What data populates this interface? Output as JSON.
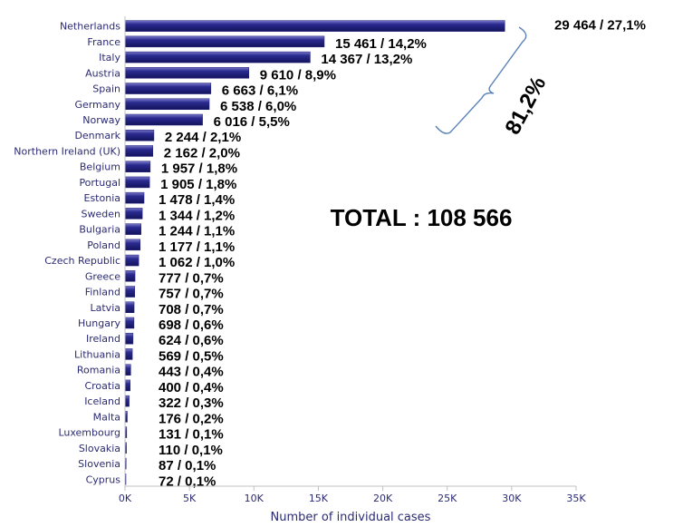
{
  "chart_data": {
    "type": "bar",
    "orientation": "horizontal",
    "categories": [
      "Netherlands",
      "France",
      "Italy",
      "Austria",
      "Spain",
      "Germany",
      "Norway",
      "Denmark",
      "Northern Ireland (UK)",
      "Belgium",
      "Portugal",
      "Estonia",
      "Sweden",
      "Bulgaria",
      "Poland",
      "Czech Republic",
      "Greece",
      "Finland",
      "Latvia",
      "Hungary",
      "Ireland",
      "Lithuania",
      "Romania",
      "Croatia",
      "Iceland",
      "Malta",
      "Luxembourg",
      "Slovakia",
      "Slovenia",
      "Cyprus"
    ],
    "values": [
      29464,
      15461,
      14367,
      9610,
      6663,
      6538,
      6016,
      2244,
      2162,
      1957,
      1905,
      1478,
      1344,
      1244,
      1177,
      1062,
      777,
      757,
      708,
      698,
      624,
      569,
      443,
      400,
      322,
      176,
      131,
      110,
      87,
      72
    ],
    "data_labels": [
      "29 464 / 27,1%",
      "15 461 / 14,2%",
      "14 367 / 13,2%",
      "9 610 / 8,9%",
      "6 663 / 6,1%",
      "6 538 / 6,0%",
      "6 016 / 5,5%",
      "2 244 / 2,1%",
      "2 162 / 2,0%",
      "1 957 / 1,8%",
      "1 905 / 1,8%",
      "1 478 / 1,4%",
      "1 344 / 1,2%",
      "1 244 / 1,1%",
      "1 177 / 1,1%",
      "1 062 / 1,0%",
      "777 / 0,7%",
      "757 / 0,7%",
      "708 / 0,7%",
      "698 / 0,6%",
      "624 / 0,6%",
      "569 / 0,5%",
      "443 / 0,4%",
      "400 / 0,4%",
      "322 / 0,3%",
      "176 / 0,2%",
      "131 / 0,1%",
      "110 / 0,1%",
      "87 / 0,1%",
      "72 / 0,1%"
    ],
    "xlabel": "Number of individual cases",
    "xlim": [
      0,
      35000
    ],
    "x_ticks": [
      0,
      5000,
      10000,
      15000,
      20000,
      25000,
      30000,
      35000
    ],
    "x_tick_labels": [
      "0K",
      "5K",
      "10K",
      "15K",
      "20K",
      "25K",
      "30K",
      "35K"
    ],
    "grid": false,
    "bar_color": "#1f1f7a",
    "annotations": {
      "total": "TOTAL : 108 566",
      "bracket_percent": "81,2%"
    }
  }
}
